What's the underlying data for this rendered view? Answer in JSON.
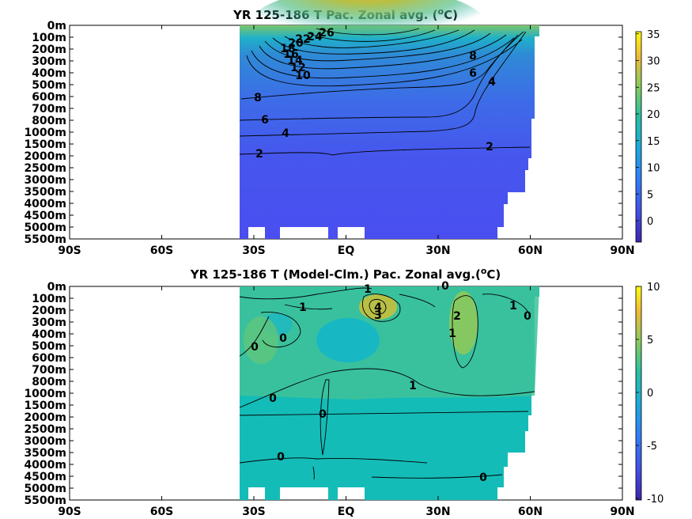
{
  "chart_data": [
    {
      "type": "heatmap",
      "title": "YR 125-186 T Pac. Zonal avg. (",
      "title_sup": "o",
      "title_tail": "C)",
      "y_ticklabels": [
        "0m",
        "100m",
        "200m",
        "300m",
        "400m",
        "500m",
        "600m",
        "700m",
        "800m",
        "1000m",
        "1500m",
        "2000m",
        "2500m",
        "3000m",
        "3500m",
        "4000m",
        "4500m",
        "5000m",
        "5500m"
      ],
      "x_ticklabels": [
        "90S",
        "60S",
        "30S",
        "EQ",
        "30N",
        "60N",
        "90N"
      ],
      "x_values": [
        -90,
        -60,
        -30,
        0,
        30,
        60,
        90
      ],
      "colorbar_ticks": [
        35,
        30,
        25,
        20,
        15,
        10,
        5,
        0
      ],
      "colorbar_range": [
        -4,
        36
      ],
      "contour_labels": [
        "26",
        "24",
        "22",
        "20",
        "18",
        "16",
        "14",
        "12",
        "10",
        "8",
        "6",
        "4",
        "2",
        "8",
        "6",
        "4",
        "2"
      ],
      "colors": {
        "low": "#3e26a8",
        "mid": "#2f8ad6",
        "high": "#f9fb0e"
      }
    },
    {
      "type": "heatmap",
      "title": "YR 125-186 T (Model-Clm.) Pac. Zonal avg.(",
      "title_sup": "o",
      "title_tail": "C)",
      "y_ticklabels": [
        "0m",
        "100m",
        "200m",
        "300m",
        "400m",
        "500m",
        "600m",
        "700m",
        "800m",
        "1000m",
        "1500m",
        "2000m",
        "2500m",
        "3000m",
        "3500m",
        "4000m",
        "4500m",
        "5000m",
        "5500m"
      ],
      "x_ticklabels": [
        "90S",
        "60S",
        "30S",
        "EQ",
        "30N",
        "60N",
        "90N"
      ],
      "x_values": [
        -90,
        -60,
        -30,
        0,
        30,
        60,
        90
      ],
      "colorbar_ticks": [
        10,
        5,
        0,
        -5,
        -10
      ],
      "colorbar_range": [
        -10,
        10
      ],
      "contour_labels": [
        "1",
        "0",
        "1",
        "0",
        "0",
        "1",
        "4",
        "3",
        "0",
        "2",
        "1",
        "1",
        "0",
        "0",
        "0",
        "0",
        "0"
      ],
      "colors": {
        "low": "#3e26a8",
        "mid": "#14bcb8",
        "high": "#f9fb0e"
      }
    }
  ]
}
